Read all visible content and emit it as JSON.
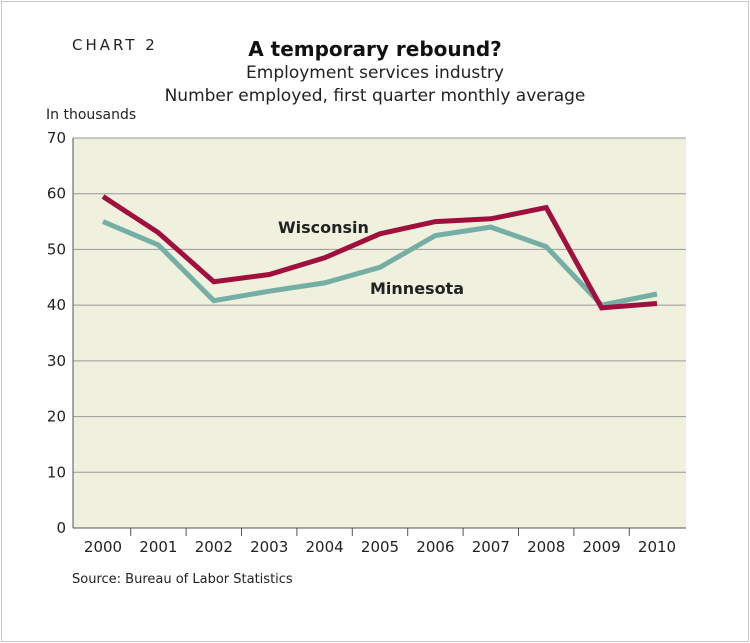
{
  "header": {
    "chart_number": "CHART 2",
    "title": "A temporary rebound?",
    "subtitle1": "Employment services industry",
    "subtitle2": "Number employed, first quarter monthly average"
  },
  "footer": {
    "source": "Source: Bureau of Labor Statistics"
  },
  "colors": {
    "wisconsin": "#a10f3e",
    "minnesota": "#74aea5",
    "plot_background": "#eff0dd",
    "gridline": "#9a9a9a"
  },
  "chart_data": {
    "type": "line",
    "title": "A temporary rebound?",
    "subtitle": "Employment services industry — Number employed, first quarter monthly average",
    "ylabel": "In thousands",
    "xlabel": "",
    "categories": [
      "2000",
      "2001",
      "2002",
      "2003",
      "2004",
      "2005",
      "2006",
      "2007",
      "2008",
      "2009",
      "2010"
    ],
    "ylim": [
      0,
      70
    ],
    "yticks": [
      0,
      10,
      20,
      30,
      40,
      50,
      60,
      70
    ],
    "grid": true,
    "legend": "inline labels",
    "series": [
      {
        "name": "Wisconsin",
        "values": [
          59.5,
          53.0,
          44.2,
          45.5,
          48.5,
          52.8,
          55.0,
          55.5,
          57.5,
          39.5,
          40.3
        ]
      },
      {
        "name": "Minnesota",
        "values": [
          55.0,
          50.8,
          40.8,
          42.5,
          44.0,
          46.8,
          52.5,
          54.0,
          50.5,
          40.0,
          42.0
        ]
      }
    ]
  }
}
